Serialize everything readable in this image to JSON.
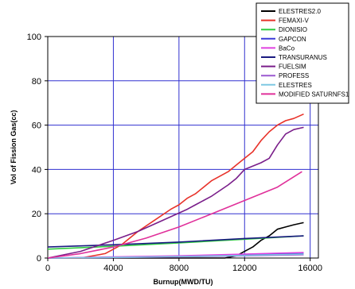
{
  "chart_data": {
    "type": "line",
    "xlabel": "Burnup(MWD/TU)",
    "ylabel": "Vol of Fission Gas(cc)",
    "xlim": [
      0,
      16500
    ],
    "ylim": [
      0,
      100
    ],
    "xticks": [
      "0",
      "4000",
      "8000",
      "12000",
      "16000"
    ],
    "yticks": [
      "0",
      "20",
      "40",
      "60",
      "80",
      "100"
    ],
    "xtick_values": [
      0,
      4000,
      8000,
      12000,
      16000
    ],
    "ytick_values": [
      0,
      20,
      40,
      60,
      80,
      100
    ],
    "grid": true,
    "legend_position": "top-right",
    "series": [
      {
        "name": "ELESTRES2.0",
        "color": "#000000",
        "points": [
          [
            0,
            0
          ],
          [
            10800,
            0
          ],
          [
            11500,
            1
          ],
          [
            12000,
            3
          ],
          [
            12500,
            5
          ],
          [
            13000,
            8
          ],
          [
            13500,
            10
          ],
          [
            14000,
            13
          ],
          [
            14500,
            14
          ],
          [
            15000,
            15
          ],
          [
            15600,
            16
          ]
        ]
      },
      {
        "name": "FEMAXI-V",
        "color": "#e8322a",
        "points": [
          [
            0,
            0
          ],
          [
            2000,
            0
          ],
          [
            3500,
            2
          ],
          [
            4500,
            6
          ],
          [
            5500,
            12
          ],
          [
            6500,
            17
          ],
          [
            7500,
            22
          ],
          [
            8000,
            24
          ],
          [
            8500,
            27
          ],
          [
            9000,
            29
          ],
          [
            9500,
            32
          ],
          [
            10000,
            35
          ],
          [
            10500,
            37
          ],
          [
            11000,
            39
          ],
          [
            11500,
            42
          ],
          [
            12000,
            45
          ],
          [
            12500,
            48
          ],
          [
            13000,
            53
          ],
          [
            13500,
            57
          ],
          [
            14000,
            60
          ],
          [
            14500,
            62
          ],
          [
            15000,
            63
          ],
          [
            15600,
            65
          ]
        ]
      },
      {
        "name": "DIONISIO",
        "color": "#2ecc40",
        "points": [
          [
            0,
            4
          ],
          [
            4000,
            5.3
          ],
          [
            8000,
            6.8
          ],
          [
            12000,
            8.5
          ],
          [
            15600,
            10
          ]
        ]
      },
      {
        "name": "GAPCON",
        "color": "#3a3ad8",
        "points": [
          [
            0,
            0
          ],
          [
            4000,
            0.3
          ],
          [
            8000,
            0.8
          ],
          [
            12000,
            1.5
          ],
          [
            15600,
            2
          ]
        ]
      },
      {
        "name": "BaCo",
        "color": "#e040e0",
        "points": [
          [
            0,
            0
          ],
          [
            4000,
            0.5
          ],
          [
            8000,
            1
          ],
          [
            12000,
            1.8
          ],
          [
            15600,
            2.5
          ]
        ]
      },
      {
        "name": "TRANSURANUS",
        "color": "#1a1a80",
        "points": [
          [
            0,
            5
          ],
          [
            4000,
            6
          ],
          [
            8000,
            7.2
          ],
          [
            12000,
            8.8
          ],
          [
            15600,
            10
          ]
        ]
      },
      {
        "name": "FUELSIM",
        "color": "#7a1e8a",
        "points": [
          [
            0,
            0
          ],
          [
            2000,
            3
          ],
          [
            4000,
            8
          ],
          [
            5500,
            12
          ],
          [
            7000,
            17
          ],
          [
            8500,
            22
          ],
          [
            9000,
            24
          ],
          [
            10000,
            28
          ],
          [
            11000,
            33
          ],
          [
            11500,
            36
          ],
          [
            12000,
            40
          ],
          [
            13000,
            43
          ],
          [
            13500,
            45
          ],
          [
            14000,
            51
          ],
          [
            14500,
            56
          ],
          [
            15000,
            58
          ],
          [
            15600,
            59
          ]
        ]
      },
      {
        "name": "PROFESS",
        "color": "#9b59d0",
        "points": [
          [
            0,
            0
          ],
          [
            4000,
            0.2
          ],
          [
            8000,
            0.5
          ],
          [
            12000,
            1
          ],
          [
            15600,
            1.5
          ]
        ]
      },
      {
        "name": "ELESTRES",
        "color": "#7ec8e3",
        "points": [
          [
            0,
            0
          ],
          [
            4000,
            0.3
          ],
          [
            8000,
            0.7
          ],
          [
            12000,
            1.2
          ],
          [
            15600,
            1.8
          ]
        ]
      },
      {
        "name": "MODIFIED SATURNFS1",
        "color": "#e0309a",
        "points": [
          [
            0,
            0
          ],
          [
            2000,
            2
          ],
          [
            4000,
            5
          ],
          [
            6000,
            9
          ],
          [
            8000,
            14
          ],
          [
            10000,
            20
          ],
          [
            12000,
            26
          ],
          [
            14000,
            32
          ],
          [
            15500,
            39
          ]
        ]
      }
    ]
  }
}
